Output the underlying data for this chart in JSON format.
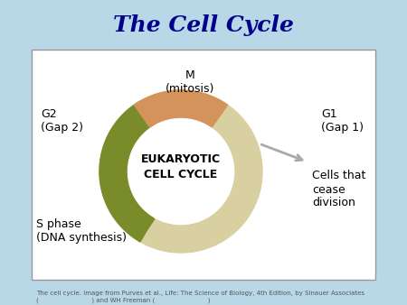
{
  "title": "The Cell Cycle",
  "title_color": "#00008B",
  "title_fontsize": 18,
  "bg_color": "#b8d8e8",
  "box_color": "#ffffff",
  "box_border_color": "#999999",
  "color_olive": "#7a8c2a",
  "color_orange": "#d4935a",
  "color_cream": "#d8d0a0",
  "color_gray_arrow": "#aaaaaa",
  "r_outer": 0.78,
  "r_inner": 0.52,
  "caption_line1": "The cell cycle. Image from Purves et al., Life: The Science of Biology, 4th Edition, by Sinauer Associates",
  "caption_line2": "(                          ) and WH Freeman (                          )"
}
